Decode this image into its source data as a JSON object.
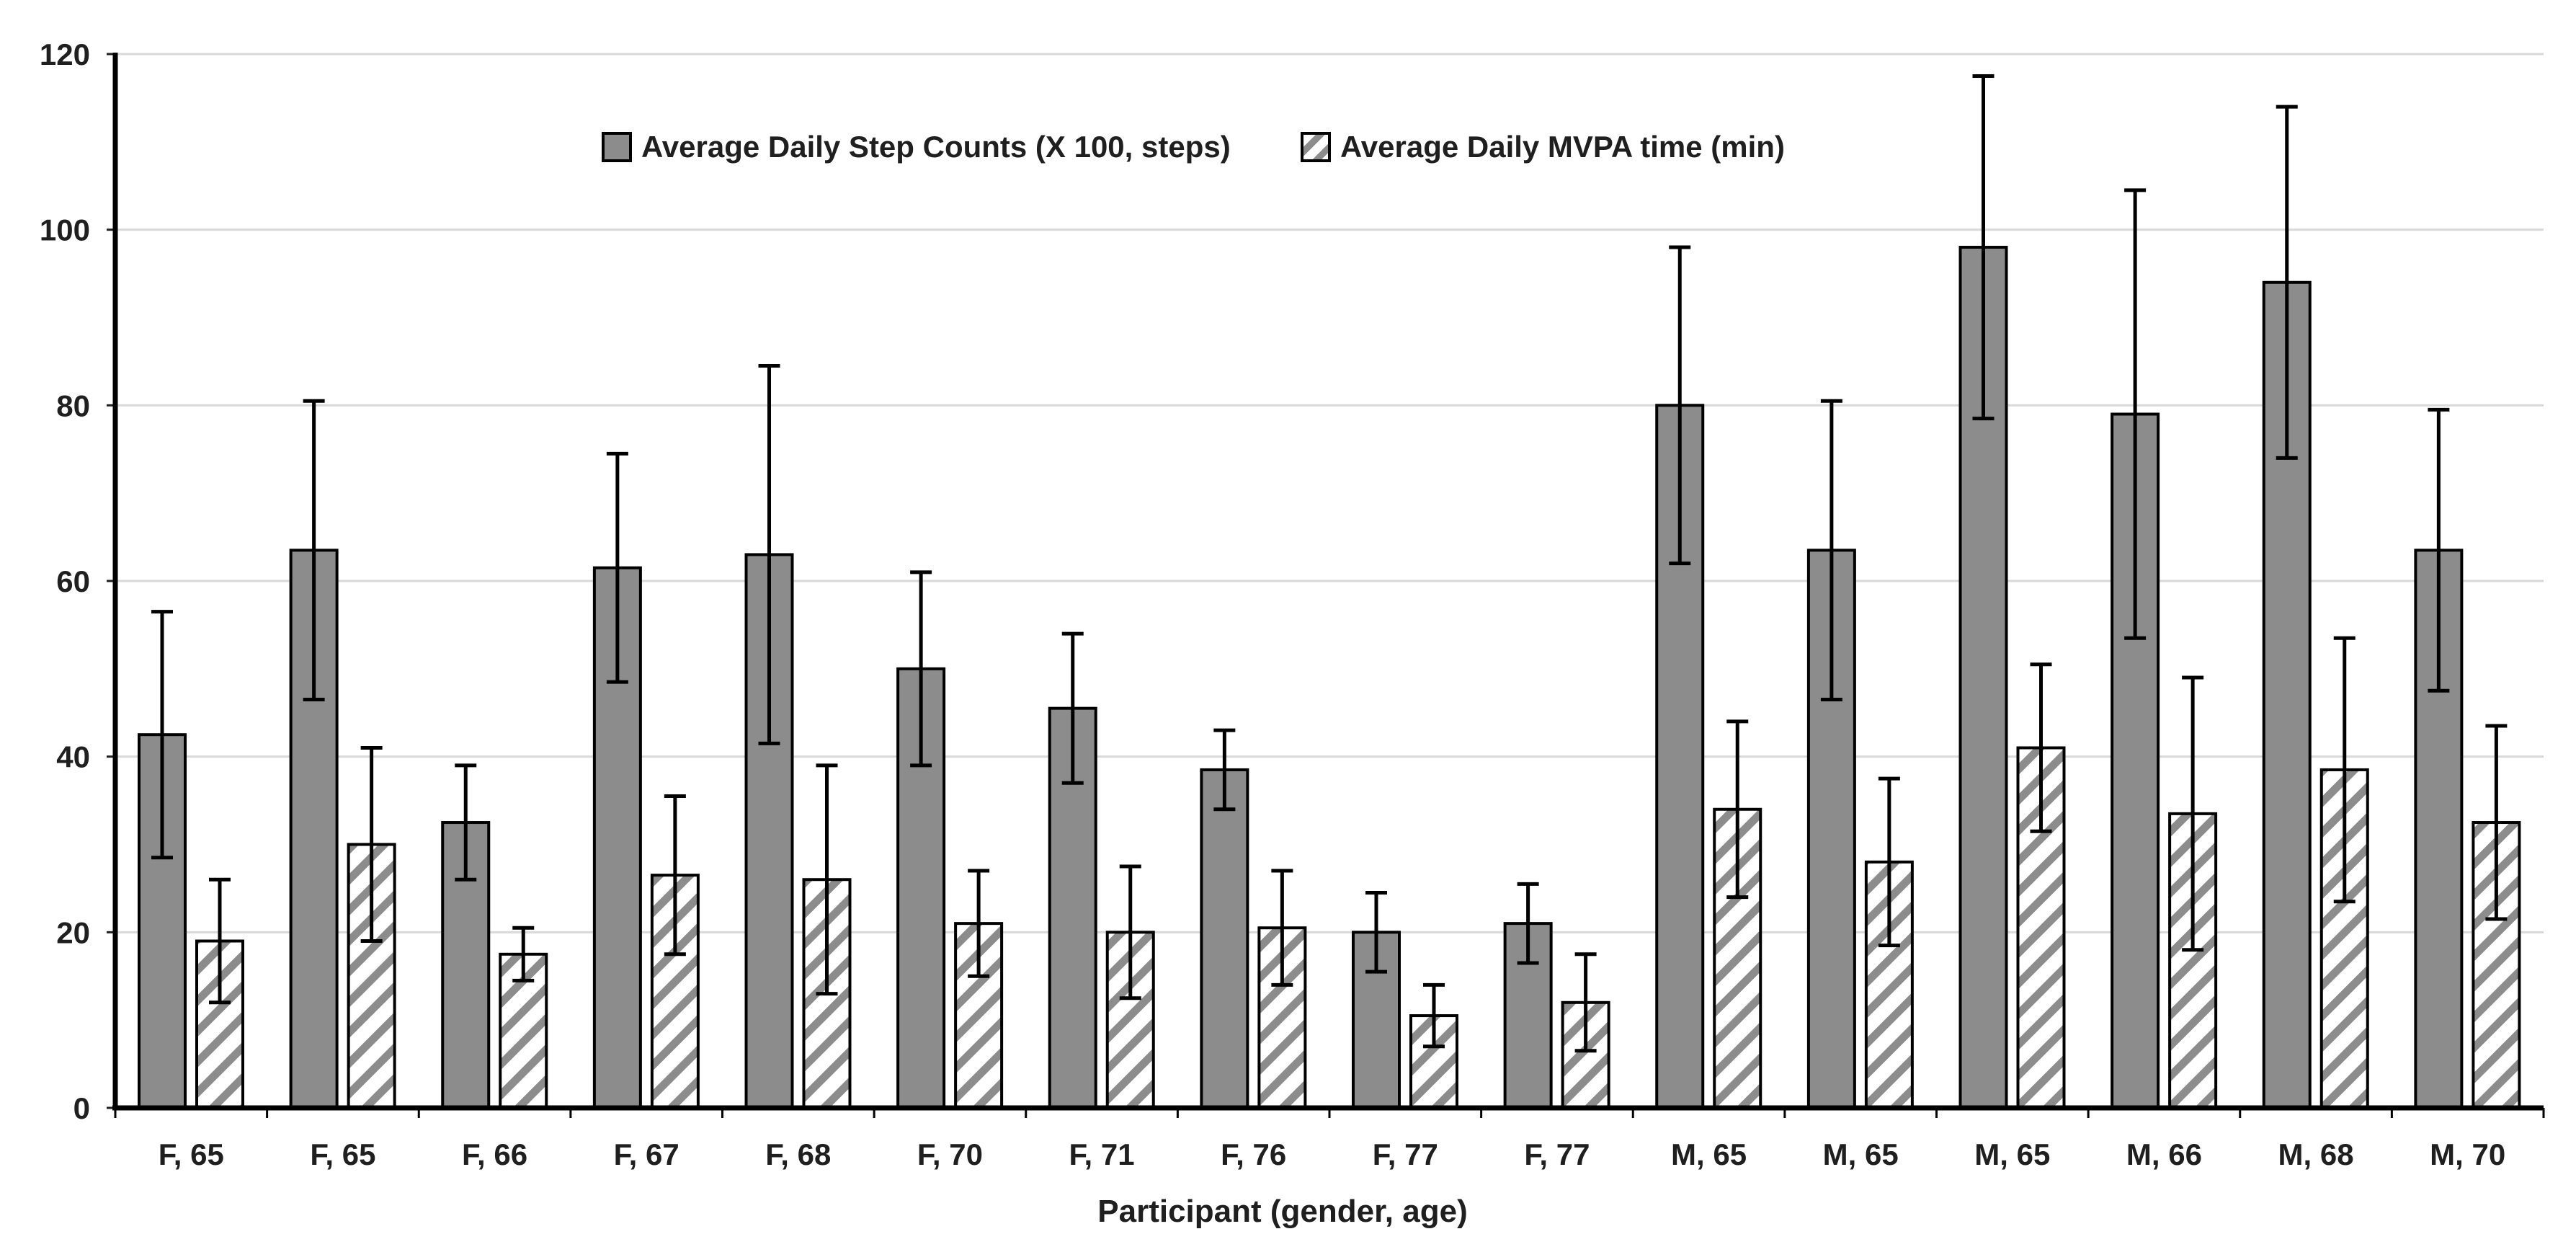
{
  "chart_data": {
    "type": "bar",
    "title": "",
    "xlabel": "Participant (gender, age)",
    "ylabel": "",
    "ylim": [
      0,
      120
    ],
    "yticks": [
      0,
      20,
      40,
      60,
      80,
      100,
      120
    ],
    "grid": true,
    "legend_position": "top-center",
    "error_bars": true,
    "categories": [
      "F, 65",
      "F, 65",
      "F, 66",
      "F, 67",
      "F, 68",
      "F, 70",
      "F, 71",
      "F, 76",
      "F, 77",
      "F, 77",
      "M, 65",
      "M, 65",
      "M, 65",
      "M, 66",
      "M, 68",
      "M, 70"
    ],
    "series": [
      {
        "name": "Average Daily Step Counts (X 100, steps)",
        "style": "solid",
        "values": [
          42.5,
          63.5,
          32.5,
          61.5,
          63,
          50,
          45.5,
          38.5,
          20,
          21,
          80,
          63.5,
          98,
          79,
          94,
          63.5
        ],
        "errors": [
          14,
          17,
          6.5,
          13,
          21.5,
          11,
          8.5,
          4.5,
          4.5,
          4.5,
          18,
          17,
          19.5,
          25.5,
          20,
          16
        ]
      },
      {
        "name": "Average Daily MVPA time (min)",
        "style": "hatched",
        "values": [
          19,
          30,
          17.5,
          26.5,
          26,
          21,
          20,
          20.5,
          10.5,
          12,
          34,
          28,
          41,
          33.5,
          38.5,
          32.5
        ],
        "errors": [
          7,
          11,
          3,
          9,
          13,
          6,
          7.5,
          6.5,
          3.5,
          5.5,
          10,
          9.5,
          9.5,
          15.5,
          15,
          11
        ]
      }
    ],
    "colors": {
      "bar_fill": "#8c8c8c",
      "bar_stroke": "#000000",
      "hatch_stripe": "#8c8c8c",
      "hatch_bg": "#ffffff",
      "grid": "#d9d9d9",
      "axis": "#000000",
      "error": "#000000",
      "text": "#1f1f1f"
    }
  }
}
